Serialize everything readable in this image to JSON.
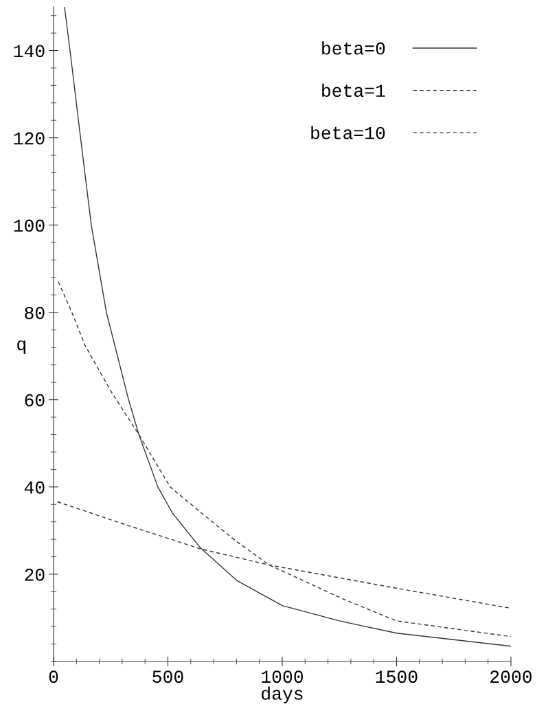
{
  "chart_data": {
    "type": "line",
    "xlabel": "days",
    "ylabel": "q",
    "xlim": [
      0,
      2000
    ],
    "ylim": [
      0,
      150
    ],
    "xticks": [
      0,
      500,
      1000,
      1500,
      2000
    ],
    "yticks": [
      20,
      40,
      60,
      80,
      100,
      120,
      140
    ],
    "grid": false,
    "legend": "top right",
    "series": [
      {
        "name": "beta=0",
        "color": "#333333",
        "line_style": "solid",
        "x": [
          48,
          72,
          118,
          165,
          231,
          328,
          373,
          456,
          520,
          643,
          800,
          1000,
          1250,
          1500,
          1750,
          2000
        ],
        "values": [
          150,
          140,
          120,
          100,
          80,
          60,
          52,
          40,
          34,
          26,
          18.6,
          12.8,
          9.3,
          6.5,
          5.0,
          3.5
        ]
      },
      {
        "name": "beta=1",
        "color": "#333333",
        "line_style": "dashed",
        "x": [
          21,
          80,
          137,
          250,
          373,
          510,
          652,
          800,
          944,
          1267,
          1500,
          2000
        ],
        "values": [
          87,
          80,
          72.5,
          62,
          52,
          40,
          33.8,
          27.5,
          22.1,
          14.3,
          9.3,
          5.7
        ]
      },
      {
        "name": "beta=10",
        "color": "#333333",
        "line_style": "dashed",
        "x": [
          17,
          300,
          643,
          944,
          1498,
          2000
        ],
        "values": [
          36.6,
          31.6,
          25.8,
          22.1,
          16.8,
          12.2
        ]
      }
    ]
  }
}
